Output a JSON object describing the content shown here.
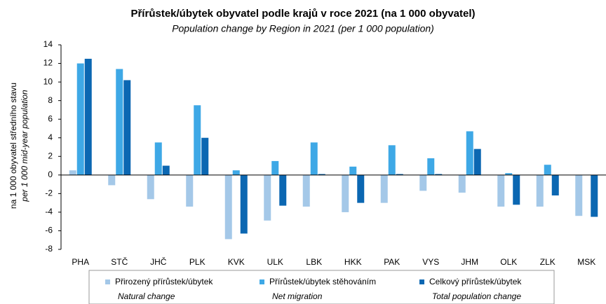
{
  "chart_data": {
    "type": "bar",
    "title": "Přírůstek/úbytek obyvatel podle krajů v roce 2021 (na 1 000 obyvatel)",
    "subtitle": "Population change by Region in 2021 (per 1 000 population)",
    "ylabel": "na 1 000 obyvatel středního stavu",
    "ylabel_en": "per 1 000 mid-year population",
    "categories": [
      "PHA",
      "STČ",
      "JHČ",
      "PLK",
      "KVK",
      "ULK",
      "LBK",
      "HKK",
      "PAK",
      "VYS",
      "JHM",
      "OLK",
      "ZLK",
      "MSK"
    ],
    "series": [
      {
        "name": "Přirozený přírůstek/úbytek",
        "name_en": "Natural change",
        "color": "#a4c8e8",
        "values": [
          0.5,
          -1.1,
          -2.6,
          -3.4,
          -6.9,
          -4.9,
          -3.4,
          -4.0,
          -3.0,
          -1.7,
          -1.9,
          -3.4,
          -3.4,
          -4.4
        ]
      },
      {
        "name": "Přírůstek/úbytek stěhováním",
        "name_en": "Net migration",
        "color": "#3ea8e6",
        "values": [
          12.0,
          11.4,
          3.5,
          7.5,
          0.5,
          1.5,
          3.5,
          0.9,
          3.2,
          1.8,
          4.7,
          0.2,
          1.1,
          0.0
        ]
      },
      {
        "name": "Celkový přírůstek/úbytek",
        "name_en": "Total population change",
        "color": "#0b67b2",
        "values": [
          12.5,
          10.2,
          1.0,
          4.0,
          -6.3,
          -3.3,
          0.1,
          -3.0,
          0.1,
          0.1,
          2.8,
          -3.2,
          -2.2,
          -4.5
        ]
      }
    ],
    "ylim": [
      -8,
      14
    ],
    "yticks": [
      -8,
      -6,
      -4,
      -2,
      0,
      2,
      4,
      6,
      8,
      10,
      12,
      14
    ],
    "grid": false
  }
}
